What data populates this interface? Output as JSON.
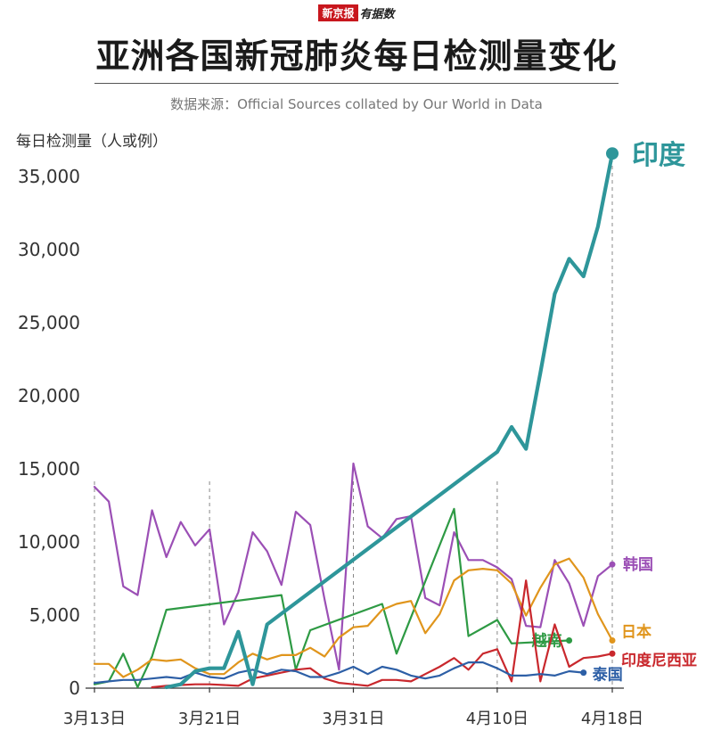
{
  "brand": {
    "box": "新京报",
    "text": "有据数"
  },
  "title": "亚洲各国新冠肺炎每日检测量变化",
  "source": "数据来源：Official Sources collated by Our World in Data",
  "chart_data": {
    "type": "line",
    "ylabel": "每日检测量（人或例）",
    "ylim": [
      0,
      37000
    ],
    "yticks": [
      "0",
      "5,000",
      "10,000",
      "15,000",
      "20,000",
      "25,000",
      "30,000",
      "35,000"
    ],
    "ytick_values": [
      0,
      5000,
      10000,
      15000,
      20000,
      25000,
      30000,
      35000
    ],
    "xlim": [
      0,
      36
    ],
    "xticks": [
      {
        "label": "3月13日",
        "day": 0
      },
      {
        "label": "3月21日",
        "day": 8
      },
      {
        "label": "3月31日",
        "day": 18
      },
      {
        "label": "4月10日",
        "day": 28
      },
      {
        "label": "4月18日",
        "day": 36
      }
    ],
    "series": [
      {
        "name": "韩国",
        "color": "#9b4fb5",
        "width": 2.2,
        "points": [
          [
            0,
            13700
          ],
          [
            1,
            12700
          ],
          [
            2,
            6900
          ],
          [
            3,
            6300
          ],
          [
            4,
            12100
          ],
          [
            5,
            8900
          ],
          [
            6,
            11300
          ],
          [
            7,
            9700
          ],
          [
            8,
            10800
          ],
          [
            9,
            4300
          ],
          [
            10,
            6500
          ],
          [
            11,
            10600
          ],
          [
            12,
            9300
          ],
          [
            13,
            7000
          ],
          [
            14,
            12000
          ],
          [
            15,
            11100
          ],
          [
            16,
            6000
          ],
          [
            17,
            1200
          ],
          [
            18,
            15300
          ],
          [
            19,
            11000
          ],
          [
            20,
            10200
          ],
          [
            21,
            11500
          ],
          [
            22,
            11700
          ],
          [
            23,
            6100
          ],
          [
            24,
            5600
          ],
          [
            25,
            10600
          ],
          [
            26,
            8700
          ],
          [
            27,
            8700
          ],
          [
            28,
            8200
          ],
          [
            29,
            7400
          ],
          [
            30,
            4200
          ],
          [
            31,
            4100
          ],
          [
            32,
            8700
          ],
          [
            33,
            7100
          ],
          [
            34,
            4200
          ],
          [
            35,
            7600
          ],
          [
            36,
            8400
          ]
        ]
      },
      {
        "name": "越南",
        "color": "#2e9a44",
        "width": 2.2,
        "points": [
          [
            0,
            200
          ],
          [
            1,
            400
          ],
          [
            2,
            2300
          ],
          [
            3,
            0
          ],
          [
            4,
            2100
          ],
          [
            5,
            5300
          ],
          [
            13,
            6300
          ],
          [
            14,
            1200
          ],
          [
            15,
            3900
          ],
          [
            20,
            5700
          ],
          [
            21,
            2300
          ],
          [
            25,
            12200
          ],
          [
            26,
            3500
          ],
          [
            28,
            4600
          ],
          [
            29,
            3000
          ],
          [
            33,
            3200
          ]
        ]
      },
      {
        "name": "日本",
        "color": "#e0951c",
        "width": 2.2,
        "points": [
          [
            0,
            1600
          ],
          [
            1,
            1600
          ],
          [
            2,
            700
          ],
          [
            3,
            1200
          ],
          [
            4,
            1900
          ],
          [
            5,
            1800
          ],
          [
            6,
            1900
          ],
          [
            7,
            1300
          ],
          [
            8,
            900
          ],
          [
            9,
            900
          ],
          [
            10,
            1700
          ],
          [
            11,
            2300
          ],
          [
            12,
            1900
          ],
          [
            13,
            2200
          ],
          [
            14,
            2200
          ],
          [
            15,
            2700
          ],
          [
            16,
            2100
          ],
          [
            17,
            3400
          ],
          [
            18,
            4100
          ],
          [
            19,
            4200
          ],
          [
            20,
            5300
          ],
          [
            21,
            5700
          ],
          [
            22,
            5900
          ],
          [
            23,
            3700
          ],
          [
            24,
            5000
          ],
          [
            25,
            7300
          ],
          [
            26,
            8000
          ],
          [
            27,
            8100
          ],
          [
            28,
            8000
          ],
          [
            29,
            7100
          ],
          [
            30,
            4900
          ],
          [
            31,
            6800
          ],
          [
            32,
            8400
          ],
          [
            33,
            8800
          ],
          [
            34,
            7500
          ],
          [
            35,
            5000
          ],
          [
            36,
            3200
          ]
        ]
      },
      {
        "name": "印度尼西亚",
        "color": "#c9282d",
        "width": 2.2,
        "points": [
          [
            4,
            0
          ],
          [
            5,
            100
          ],
          [
            6,
            150
          ],
          [
            7,
            200
          ],
          [
            8,
            200
          ],
          [
            9,
            150
          ],
          [
            10,
            100
          ],
          [
            11,
            600
          ],
          [
            12,
            800
          ],
          [
            13,
            1000
          ],
          [
            14,
            1200
          ],
          [
            15,
            1300
          ],
          [
            16,
            600
          ],
          [
            17,
            300
          ],
          [
            18,
            200
          ],
          [
            19,
            100
          ],
          [
            20,
            500
          ],
          [
            21,
            500
          ],
          [
            22,
            400
          ],
          [
            23,
            900
          ],
          [
            24,
            1400
          ],
          [
            25,
            2000
          ],
          [
            26,
            1200
          ],
          [
            27,
            2300
          ],
          [
            28,
            2600
          ],
          [
            29,
            400
          ],
          [
            30,
            7300
          ],
          [
            31,
            400
          ],
          [
            32,
            4300
          ],
          [
            33,
            1400
          ],
          [
            34,
            2000
          ],
          [
            35,
            2100
          ],
          [
            36,
            2300
          ]
        ]
      },
      {
        "name": "泰国",
        "color": "#2d5fa6",
        "width": 2.2,
        "points": [
          [
            0,
            300
          ],
          [
            1,
            400
          ],
          [
            2,
            500
          ],
          [
            3,
            500
          ],
          [
            4,
            600
          ],
          [
            5,
            700
          ],
          [
            6,
            600
          ],
          [
            7,
            1000
          ],
          [
            8,
            700
          ],
          [
            9,
            600
          ],
          [
            10,
            1000
          ],
          [
            11,
            1200
          ],
          [
            12,
            900
          ],
          [
            13,
            1200
          ],
          [
            14,
            1100
          ],
          [
            15,
            700
          ],
          [
            16,
            700
          ],
          [
            17,
            1000
          ],
          [
            18,
            1400
          ],
          [
            19,
            900
          ],
          [
            20,
            1400
          ],
          [
            21,
            1200
          ],
          [
            22,
            800
          ],
          [
            23,
            600
          ],
          [
            24,
            800
          ],
          [
            25,
            1300
          ],
          [
            26,
            1700
          ],
          [
            27,
            1700
          ],
          [
            28,
            1300
          ],
          [
            29,
            800
          ],
          [
            30,
            800
          ],
          [
            31,
            900
          ],
          [
            32,
            800
          ],
          [
            33,
            1100
          ],
          [
            34,
            1000
          ]
        ]
      },
      {
        "name": "印度",
        "color": "#2e969a",
        "width": 4.2,
        "points": [
          [
            5,
            0
          ],
          [
            6,
            200
          ],
          [
            7,
            1100
          ],
          [
            8,
            1300
          ],
          [
            9,
            1300
          ],
          [
            10,
            3800
          ],
          [
            11,
            200
          ],
          [
            12,
            4300
          ],
          [
            28,
            16100
          ],
          [
            29,
            17800
          ],
          [
            30,
            16300
          ],
          [
            31,
            21500
          ],
          [
            32,
            26900
          ],
          [
            33,
            29300
          ],
          [
            34,
            28100
          ],
          [
            35,
            31500
          ],
          [
            36,
            36500
          ]
        ]
      }
    ]
  }
}
